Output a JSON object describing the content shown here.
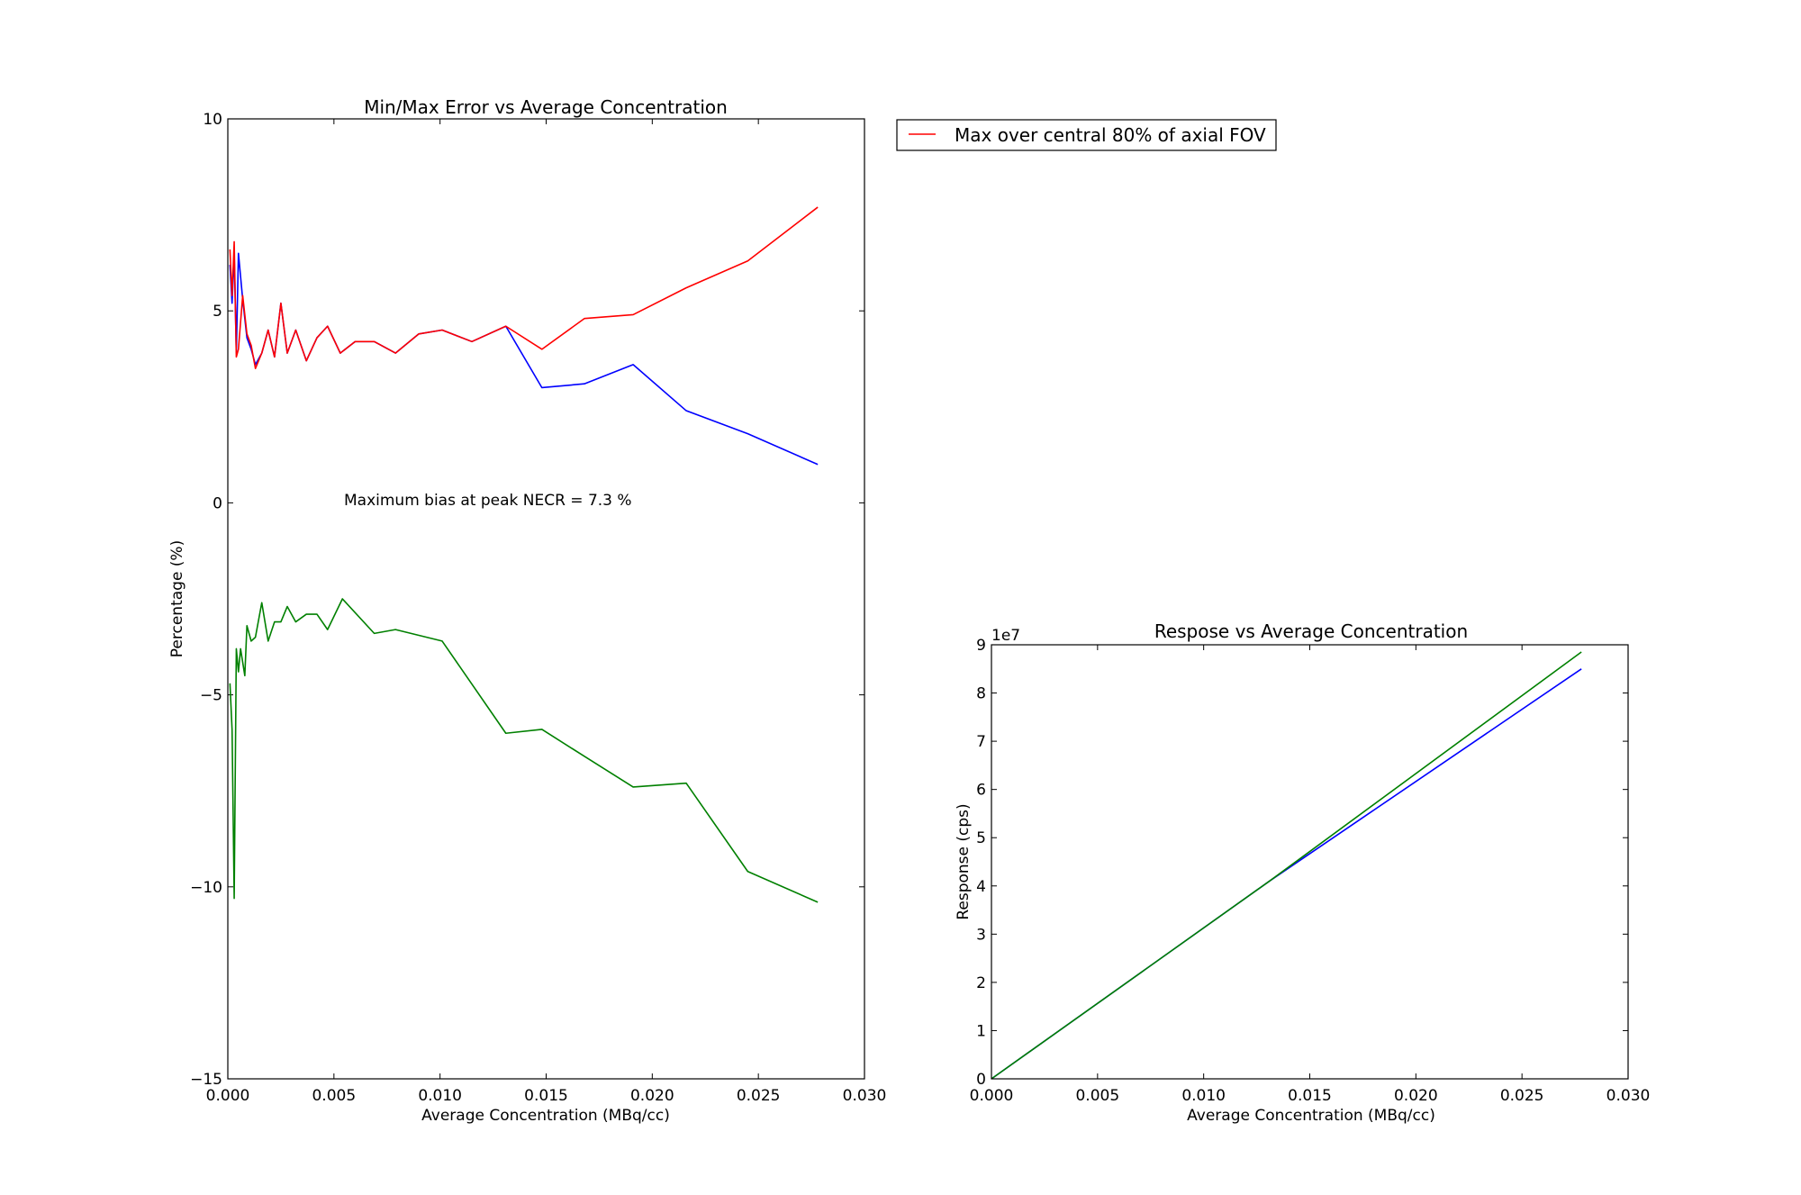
{
  "chart_data": [
    {
      "type": "line",
      "title": "Min/Max Error vs Average Concentration",
      "xlabel": "Average Concentration (MBq/cc)",
      "ylabel": "Percentage (%)",
      "xlim": [
        0.0,
        0.03
      ],
      "ylim": [
        -15,
        10
      ],
      "xticks": [
        0.0,
        0.005,
        0.01,
        0.015,
        0.02,
        0.025,
        0.03
      ],
      "xtick_labels": [
        "0.000",
        "0.005",
        "0.010",
        "0.015",
        "0.020",
        "0.025",
        "0.030"
      ],
      "yticks": [
        -15,
        -10,
        -5,
        0,
        5,
        10
      ],
      "ytick_labels": [
        "−15",
        "−10",
        "−5",
        "0",
        "5",
        "10"
      ],
      "grid": false,
      "annotation": "Maximum bias at peak NECR = 7.3 %",
      "legend": {
        "placement": "outside-top-right",
        "entries": [
          {
            "label": "Max over central 80% of axial FOV",
            "color": "#ff0000"
          }
        ]
      },
      "series": [
        {
          "color": "#0000ff",
          "x": [
            0.0001,
            0.0002,
            0.0003,
            0.0004,
            0.0005,
            0.0007,
            0.0009,
            0.0011,
            0.0013,
            0.0016,
            0.0019,
            0.0022,
            0.0025,
            0.0028,
            0.0032,
            0.0037,
            0.0042,
            0.0047,
            0.0053,
            0.006,
            0.0069,
            0.0079,
            0.009,
            0.0101,
            0.0115,
            0.0131,
            0.0148,
            0.0168,
            0.0191,
            0.0216,
            0.0245,
            0.0278
          ],
          "y": [
            6.2,
            5.2,
            6.5,
            3.9,
            6.5,
            5.3,
            4.3,
            4.0,
            3.6,
            3.9,
            4.5,
            3.8,
            5.2,
            3.9,
            4.5,
            3.7,
            4.3,
            4.6,
            3.9,
            4.2,
            4.2,
            3.9,
            4.4,
            4.5,
            4.2,
            4.6,
            3.0,
            3.1,
            3.6,
            2.4,
            1.8,
            1.0
          ]
        },
        {
          "color": "#ff0000",
          "x": [
            0.0001,
            0.0002,
            0.0003,
            0.0004,
            0.0005,
            0.0007,
            0.0009,
            0.0011,
            0.0013,
            0.0016,
            0.0019,
            0.0022,
            0.0025,
            0.0028,
            0.0032,
            0.0037,
            0.0042,
            0.0047,
            0.0053,
            0.006,
            0.0069,
            0.0079,
            0.009,
            0.0101,
            0.0115,
            0.0131,
            0.0148,
            0.0168,
            0.0191,
            0.0216,
            0.0245,
            0.0278
          ],
          "y": [
            6.6,
            5.4,
            6.8,
            3.8,
            4.0,
            5.4,
            4.4,
            4.1,
            3.5,
            3.9,
            4.5,
            3.8,
            5.2,
            3.9,
            4.5,
            3.7,
            4.3,
            4.6,
            3.9,
            4.2,
            4.2,
            3.9,
            4.4,
            4.5,
            4.2,
            4.6,
            4.0,
            4.8,
            4.9,
            5.6,
            6.3,
            7.7
          ]
        },
        {
          "color": "#008000",
          "x": [
            0.0001,
            0.0002,
            0.0003,
            0.0004,
            0.0005,
            0.0006,
            0.0008,
            0.0009,
            0.0011,
            0.0013,
            0.0016,
            0.0019,
            0.0022,
            0.0025,
            0.0028,
            0.0032,
            0.0037,
            0.0042,
            0.0047,
            0.0054,
            0.0069,
            0.0079,
            0.0101,
            0.0131,
            0.0148,
            0.0168,
            0.0191,
            0.0216,
            0.0245,
            0.0278
          ],
          "y": [
            -4.7,
            -5.9,
            -10.3,
            -3.8,
            -4.4,
            -3.8,
            -4.5,
            -3.2,
            -3.6,
            -3.5,
            -2.6,
            -3.6,
            -3.1,
            -3.1,
            -2.7,
            -3.1,
            -2.9,
            -2.9,
            -3.3,
            -2.5,
            -3.4,
            -3.3,
            -3.6,
            -6.0,
            -5.9,
            -6.6,
            -7.4,
            -7.3,
            -9.6,
            -10.4
          ]
        }
      ]
    },
    {
      "type": "line",
      "title": "Respose vs Average Concentration",
      "xlabel": "Average Concentration (MBq/cc)",
      "ylabel": "Response (cps)",
      "xlim": [
        0.0,
        0.03
      ],
      "ylim": [
        0,
        9
      ],
      "y_multiplier_label": "1e7",
      "xticks": [
        0.0,
        0.005,
        0.01,
        0.015,
        0.02,
        0.025,
        0.03
      ],
      "xtick_labels": [
        "0.000",
        "0.005",
        "0.010",
        "0.015",
        "0.020",
        "0.025",
        "0.030"
      ],
      "yticks": [
        0,
        1,
        2,
        3,
        4,
        5,
        6,
        7,
        8,
        9
      ],
      "ytick_labels": [
        "0",
        "1",
        "2",
        "3",
        "4",
        "5",
        "6",
        "7",
        "8",
        "9"
      ],
      "grid": false,
      "series": [
        {
          "color": "#0000ff",
          "x": [
            0.0,
            0.0131,
            0.0278
          ],
          "y": [
            0.0,
            4.1,
            8.5
          ]
        },
        {
          "color": "#008000",
          "x": [
            0.0,
            0.0131,
            0.0278
          ],
          "y": [
            0.0,
            4.1,
            8.85
          ]
        }
      ]
    }
  ]
}
